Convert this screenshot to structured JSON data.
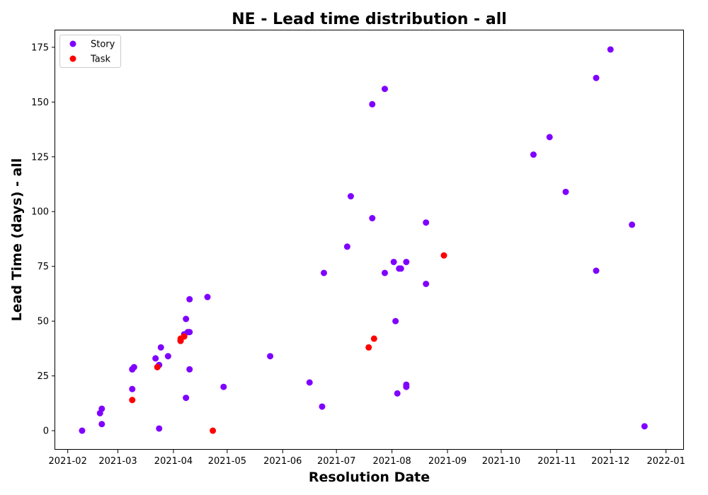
{
  "chart_data": {
    "type": "scatter",
    "title": "NE - Lead time distribution - all",
    "xlabel": "Resolution Date",
    "ylabel": "Lead Time (days) - all",
    "xlim": [
      "2021-01-25",
      "2022-01-11"
    ],
    "ylim": [
      -8.7,
      182.7
    ],
    "x_ticks": [
      "2021-02",
      "2021-03",
      "2021-04",
      "2021-05",
      "2021-06",
      "2021-07",
      "2021-08",
      "2021-09",
      "2021-10",
      "2021-11",
      "2021-12",
      "2022-01"
    ],
    "y_ticks": [
      0,
      25,
      50,
      75,
      100,
      125,
      150,
      175
    ],
    "legend_position": "upper left",
    "grid": false,
    "colors": {
      "Story": "#7f00ff",
      "Task": "#ff0000"
    },
    "series": [
      {
        "name": "Story",
        "points": [
          [
            "2021-02-09",
            0
          ],
          [
            "2021-02-19",
            8
          ],
          [
            "2021-02-20",
            10
          ],
          [
            "2021-02-20",
            3
          ],
          [
            "2021-03-09",
            28
          ],
          [
            "2021-03-09",
            28
          ],
          [
            "2021-03-10",
            29
          ],
          [
            "2021-03-09",
            19
          ],
          [
            "2021-03-22",
            33
          ],
          [
            "2021-03-25",
            38
          ],
          [
            "2021-03-24",
            30
          ],
          [
            "2021-03-24",
            1
          ],
          [
            "2021-03-29",
            34
          ],
          [
            "2021-04-05",
            41
          ],
          [
            "2021-04-07",
            44
          ],
          [
            "2021-04-08",
            51
          ],
          [
            "2021-04-09",
            45
          ],
          [
            "2021-04-10",
            45
          ],
          [
            "2021-04-10",
            60
          ],
          [
            "2021-04-10",
            28
          ],
          [
            "2021-04-08",
            15
          ],
          [
            "2021-04-20",
            61
          ],
          [
            "2021-04-29",
            20
          ],
          [
            "2021-05-25",
            34
          ],
          [
            "2021-06-16",
            22
          ],
          [
            "2021-06-23",
            11
          ],
          [
            "2021-06-24",
            72
          ],
          [
            "2021-07-07",
            84
          ],
          [
            "2021-07-09",
            107
          ],
          [
            "2021-07-21",
            97
          ],
          [
            "2021-07-21",
            149
          ],
          [
            "2021-07-28",
            156
          ],
          [
            "2021-07-28",
            72
          ],
          [
            "2021-08-02",
            77
          ],
          [
            "2021-08-03",
            50
          ],
          [
            "2021-08-04",
            17
          ],
          [
            "2021-08-05",
            74
          ],
          [
            "2021-08-06",
            74
          ],
          [
            "2021-08-09",
            77
          ],
          [
            "2021-08-09",
            21
          ],
          [
            "2021-08-09",
            20
          ],
          [
            "2021-08-20",
            95
          ],
          [
            "2021-08-20",
            67
          ],
          [
            "2021-10-19",
            126
          ],
          [
            "2021-10-28",
            134
          ],
          [
            "2021-11-06",
            109
          ],
          [
            "2021-11-23",
            161
          ],
          [
            "2021-11-23",
            73
          ],
          [
            "2021-12-01",
            174
          ],
          [
            "2021-12-13",
            94
          ],
          [
            "2021-12-20",
            2
          ]
        ]
      },
      {
        "name": "Task",
        "points": [
          [
            "2021-03-09",
            14
          ],
          [
            "2021-03-23",
            29
          ],
          [
            "2021-04-05",
            41
          ],
          [
            "2021-04-05",
            42
          ],
          [
            "2021-04-07",
            43
          ],
          [
            "2021-04-23",
            0
          ],
          [
            "2021-07-19",
            38
          ],
          [
            "2021-07-22",
            42
          ],
          [
            "2021-08-30",
            80
          ]
        ]
      }
    ]
  }
}
